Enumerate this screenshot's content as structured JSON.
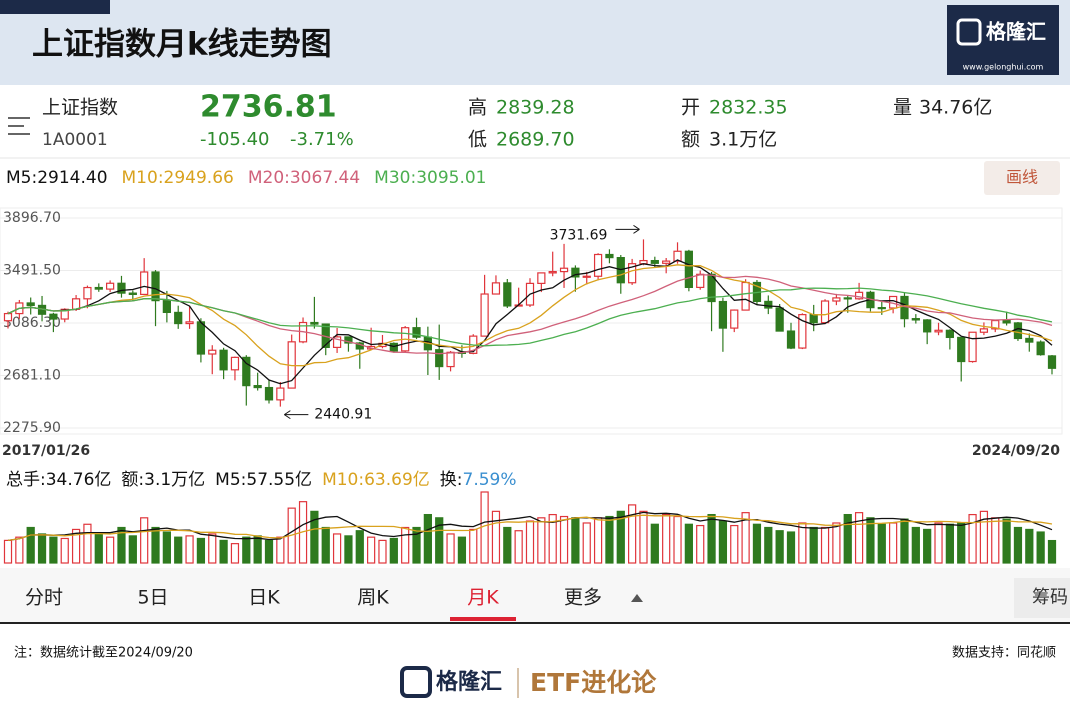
{
  "header": {
    "title": "上证指数月k线走势图",
    "logo": "格隆汇",
    "logo_url": "www.gelonghui.com"
  },
  "quote": {
    "name": "上证指数",
    "code": "1A0001",
    "price": "2736.81",
    "change": "-105.40",
    "change_pct": "-3.71%",
    "high_label": "高",
    "high": "2839.28",
    "low_label": "低",
    "low": "2689.70",
    "open_label": "开",
    "open": "2832.35",
    "amount_label": "额",
    "amount": "3.1万亿",
    "volume_label": "量",
    "volume": "34.76亿"
  },
  "ma_legend": [
    {
      "text": "M5:2914.40",
      "color": "#111111"
    },
    {
      "text": "M10:2949.66",
      "color": "#d9a21e"
    },
    {
      "text": "M20:3067.44",
      "color": "#d0617a"
    },
    {
      "text": "M30:3095.01",
      "color": "#4caf50"
    }
  ],
  "draw_button": "画线",
  "kline": {
    "ylim": [
      2275.9,
      3896.7
    ],
    "yticks": [
      {
        "value": 3896.7,
        "label": "3896.70"
      },
      {
        "value": 3491.5,
        "label": "3491.50"
      },
      {
        "value": 3086.3,
        "label": "3086.30"
      },
      {
        "value": 2681.1,
        "label": "2681.10"
      },
      {
        "value": 2275.9,
        "label": "2275.90"
      }
    ],
    "grid": true,
    "up_color": "#e0353b",
    "down_color": "#2f7a1f",
    "start_date": "2017/01/26",
    "end_date": "2024/09/20",
    "max_label": "3731.69",
    "min_label": "2440.91",
    "candles": [
      [
        3104,
        3174,
        3044,
        3159
      ],
      [
        3159,
        3264,
        3118,
        3241
      ],
      [
        3241,
        3283,
        3152,
        3222
      ],
      [
        3222,
        3295,
        3099,
        3154
      ],
      [
        3154,
        3165,
        3016,
        3117
      ],
      [
        3117,
        3200,
        3092,
        3192
      ],
      [
        3192,
        3302,
        3179,
        3273
      ],
      [
        3273,
        3375,
        3200,
        3360
      ],
      [
        3360,
        3392,
        3327,
        3348
      ],
      [
        3348,
        3415,
        3326,
        3393
      ],
      [
        3393,
        3450,
        3282,
        3317
      ],
      [
        3317,
        3338,
        3254,
        3307
      ],
      [
        3307,
        3587,
        3307,
        3480
      ],
      [
        3480,
        3495,
        3062,
        3259
      ],
      [
        3259,
        3334,
        3091,
        3168
      ],
      [
        3168,
        3220,
        3041,
        3082
      ],
      [
        3082,
        3219,
        3041,
        3095
      ],
      [
        3095,
        3123,
        2782,
        2847
      ],
      [
        2847,
        2915,
        2691,
        2876
      ],
      [
        2876,
        2895,
        2653,
        2725
      ],
      [
        2725,
        2827,
        2644,
        2821
      ],
      [
        2821,
        2838,
        2449,
        2603
      ],
      [
        2603,
        2703,
        2565,
        2588
      ],
      [
        2588,
        2647,
        2465,
        2493
      ],
      [
        2493,
        2631,
        2440.91,
        2584
      ],
      [
        2584,
        2997,
        2584,
        2941
      ],
      [
        2941,
        3129,
        2930,
        3090
      ],
      [
        3090,
        3288,
        3043,
        3078
      ],
      [
        3078,
        3078,
        2838,
        2898
      ],
      [
        2898,
        3048,
        2855,
        2979
      ],
      [
        2979,
        2980,
        2865,
        2932
      ],
      [
        2932,
        2941,
        2733,
        2886
      ],
      [
        2886,
        3050,
        2883,
        2905
      ],
      [
        2905,
        2994,
        2891,
        2929
      ],
      [
        2929,
        2937,
        2857,
        2871
      ],
      [
        2871,
        3063,
        2857,
        3050
      ],
      [
        3050,
        3127,
        2962,
        2977
      ],
      [
        2977,
        3058,
        2685,
        2880
      ],
      [
        2880,
        3074,
        2647,
        2750
      ],
      [
        2750,
        2870,
        2713,
        2860
      ],
      [
        2860,
        2915,
        2818,
        2852
      ],
      [
        2852,
        3000,
        2845,
        2985
      ],
      [
        2985,
        3458,
        2985,
        3310
      ],
      [
        3310,
        3454,
        3307,
        3396
      ],
      [
        3396,
        3426,
        3202,
        3218
      ],
      [
        3218,
        3359,
        3218,
        3225
      ],
      [
        3225,
        3432,
        3210,
        3392
      ],
      [
        3392,
        3474,
        3325,
        3473
      ],
      [
        3473,
        3637,
        3447,
        3483
      ],
      [
        3483,
        3697,
        3357,
        3509
      ],
      [
        3509,
        3531,
        3328,
        3442
      ],
      [
        3442,
        3481,
        3383,
        3447
      ],
      [
        3447,
        3625,
        3416,
        3615
      ],
      [
        3615,
        3655,
        3547,
        3591
      ],
      [
        3591,
        3611,
        3312,
        3397
      ],
      [
        3397,
        3581,
        3380,
        3544
      ],
      [
        3544,
        3731.69,
        3532,
        3568
      ],
      [
        3568,
        3598,
        3515,
        3547
      ],
      [
        3547,
        3588,
        3470,
        3564
      ],
      [
        3564,
        3709,
        3544,
        3640
      ],
      [
        3640,
        3651,
        3331,
        3361
      ],
      [
        3361,
        3491,
        3343,
        3462
      ],
      [
        3462,
        3480,
        3023,
        3252
      ],
      [
        3252,
        3281,
        2864,
        3047
      ],
      [
        3047,
        3191,
        3016,
        3186
      ],
      [
        3186,
        3424,
        3186,
        3399
      ],
      [
        3399,
        3418,
        3226,
        3253
      ],
      [
        3253,
        3299,
        3155,
        3202
      ],
      [
        3202,
        3233,
        3021,
        3024
      ],
      [
        3024,
        3088,
        2885,
        2893
      ],
      [
        2893,
        3161,
        2885,
        3151
      ],
      [
        3151,
        3226,
        3023,
        3089
      ],
      [
        3089,
        3270,
        3077,
        3256
      ],
      [
        3256,
        3311,
        3224,
        3280
      ],
      [
        3280,
        3298,
        3165,
        3273
      ],
      [
        3273,
        3396,
        3265,
        3323
      ],
      [
        3323,
        3335,
        3176,
        3205
      ],
      [
        3205,
        3254,
        3149,
        3202
      ],
      [
        3202,
        3292,
        3161,
        3291
      ],
      [
        3291,
        3322,
        3053,
        3120
      ],
      [
        3120,
        3155,
        3082,
        3110
      ],
      [
        3110,
        3116,
        2923,
        3018
      ],
      [
        3018,
        3088,
        2992,
        3030
      ],
      [
        3030,
        3038,
        2882,
        2975
      ],
      [
        2975,
        2977,
        2635,
        2789
      ],
      [
        2789,
        3015,
        2780,
        3015
      ],
      [
        3015,
        3091,
        2993,
        3041
      ],
      [
        3041,
        3113,
        3016,
        3105
      ],
      [
        3105,
        3174,
        3067,
        3087
      ],
      [
        3087,
        3094,
        2948,
        2967
      ],
      [
        2967,
        3006,
        2865,
        2939
      ],
      [
        2939,
        2952,
        2834,
        2842
      ],
      [
        2832.35,
        2839.28,
        2689.7,
        2736.81
      ]
    ],
    "volumes": [
      35,
      40,
      55,
      45,
      40,
      38,
      52,
      60,
      45,
      40,
      55,
      42,
      70,
      55,
      48,
      40,
      42,
      38,
      45,
      35,
      30,
      40,
      42,
      35,
      40,
      85,
      95,
      80,
      55,
      45,
      42,
      50,
      40,
      35,
      38,
      55,
      55,
      75,
      70,
      45,
      40,
      52,
      110,
      80,
      55,
      50,
      65,
      70,
      75,
      72,
      70,
      62,
      70,
      72,
      80,
      90,
      80,
      60,
      75,
      72,
      60,
      58,
      75,
      65,
      58,
      78,
      60,
      55,
      50,
      48,
      62,
      55,
      55,
      62,
      75,
      78,
      70,
      60,
      62,
      68,
      55,
      52,
      62,
      60,
      62,
      75,
      80,
      70,
      68,
      55,
      52,
      48,
      34.76
    ]
  },
  "volume_legend": [
    {
      "text": "总手:34.76亿",
      "color": "#111111"
    },
    {
      "text": "额:3.1万亿",
      "color": "#111111"
    },
    {
      "text": "M5:57.55亿",
      "color": "#111111"
    },
    {
      "text": "M10:63.69亿",
      "color": "#d9a21e"
    },
    {
      "text": "换:",
      "color": "#111111"
    },
    {
      "text": "7.59%",
      "color": "#3a8fd0"
    }
  ],
  "tabs": [
    "分时",
    "5日",
    "日K",
    "周K",
    "月K",
    "更多"
  ],
  "active_tab": 4,
  "side_button": "筹码",
  "footer": {
    "note": "注：数据统计截至2024/09/20",
    "source": "数据支持：同花顺",
    "brand1": "格隆汇",
    "brand2": "ETF进化论"
  }
}
